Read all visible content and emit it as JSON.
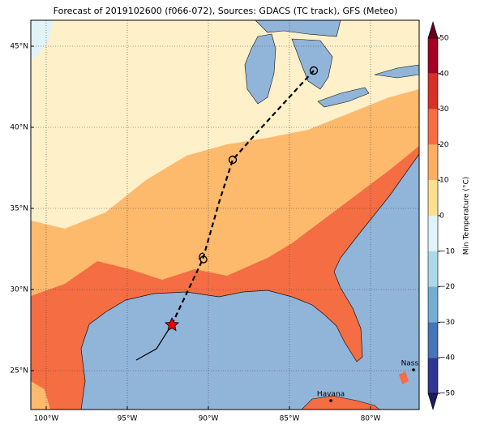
{
  "title": "Forecast of 2019102600 (f066-072), Sources: GDACS (TC track), GFS (Meteo)",
  "lon_ticks": [
    {
      "value": -100,
      "label": "100°W"
    },
    {
      "value": -95,
      "label": "95°W"
    },
    {
      "value": -90,
      "label": "90°W"
    },
    {
      "value": -85,
      "label": "85°W"
    },
    {
      "value": -80,
      "label": "80°W"
    }
  ],
  "lat_ticks": [
    {
      "value": 45,
      "label": "45°N"
    },
    {
      "value": 40,
      "label": "40°N"
    },
    {
      "value": 35,
      "label": "35°N"
    },
    {
      "value": 30,
      "label": "30°N"
    },
    {
      "value": 25,
      "label": "25°N"
    }
  ],
  "colorbar": {
    "label": "Min Temperature (°C)",
    "lim": [
      -50,
      50
    ],
    "ticks": [
      50,
      40,
      30,
      20,
      10,
      0,
      {
        "value": -10,
        "label": "−10"
      },
      {
        "value": -20,
        "label": "−20"
      },
      {
        "value": -30,
        "label": "−30"
      },
      {
        "value": -40,
        "label": "−40"
      },
      {
        "value": -50,
        "label": "−50"
      }
    ],
    "colors": [
      "#a50026",
      "#d73027",
      "#f46d43",
      "#fdae61",
      "#fee090",
      "#e0f3f8",
      "#abd9e9",
      "#74add1",
      "#4575b4",
      "#313695"
    ]
  },
  "cities": [
    "Nassau",
    "Havana"
  ]
}
